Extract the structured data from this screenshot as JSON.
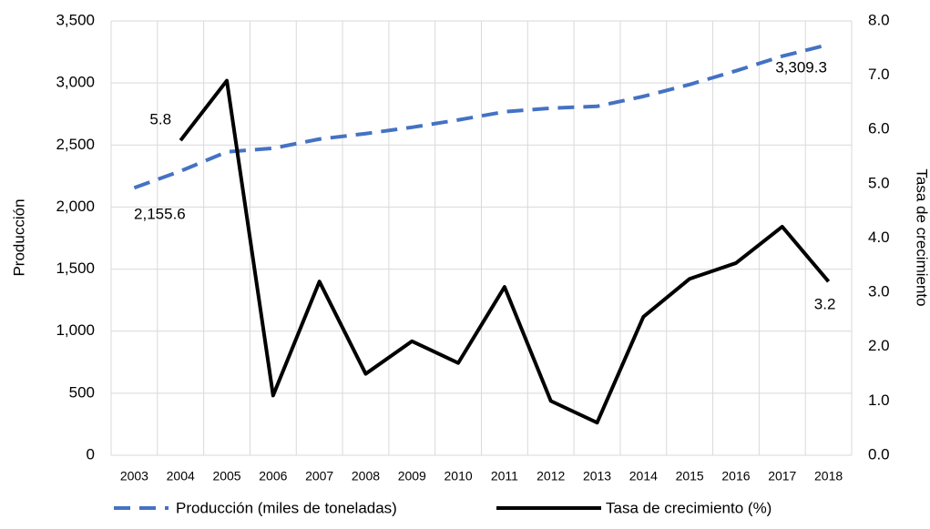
{
  "chart_data": {
    "type": "line",
    "categories": [
      "2003",
      "2004",
      "2005",
      "2006",
      "2007",
      "2008",
      "2009",
      "2010",
      "2011",
      "2012",
      "2013",
      "2014",
      "2015",
      "2016",
      "2017",
      "2018"
    ],
    "series": [
      {
        "name": "Producción (miles de toneladas)",
        "color": "#4472c4",
        "dash": true,
        "values": [
          2155.6,
          2290,
          2445,
          2474,
          2548,
          2592,
          2643,
          2702,
          2768,
          2797,
          2812,
          2892,
          2988,
          3098,
          3216,
          3309.3
        ],
        "value_labels": [
          "2,155.6",
          null,
          null,
          null,
          null,
          null,
          null,
          null,
          null,
          null,
          null,
          null,
          null,
          null,
          null,
          "3,309.3"
        ]
      },
      {
        "name": "Tasa de crecimiento (%)",
        "color": "#000000",
        "axis": "y2",
        "values": [
          null,
          5.8,
          6.9,
          1.1,
          3.2,
          1.5,
          2.1,
          1.7,
          3.1,
          1.0,
          0.6,
          2.55,
          3.25,
          3.54,
          4.21,
          3.2
        ],
        "value_labels": [
          null,
          "5.8",
          null,
          null,
          null,
          null,
          null,
          null,
          null,
          null,
          null,
          null,
          null,
          null,
          null,
          "3.2"
        ]
      }
    ],
    "ylabel": "Producción",
    "y2label": "Tasa de crecimiento",
    "ylim": [
      0,
      3500
    ],
    "yticks": [
      0,
      500,
      {
        "value": 1000,
        "label": "1,000"
      },
      {
        "value": 1500,
        "label": "1,500"
      },
      {
        "value": 2000,
        "label": "2,000"
      },
      {
        "value": 2500,
        "label": "2,500"
      },
      {
        "value": 3000,
        "label": "3,000"
      },
      {
        "value": 3500,
        "label": "3,500"
      }
    ],
    "y2lim": [
      0,
      8
    ],
    "y2ticks": [
      {
        "value": 0,
        "label": "0.0"
      },
      {
        "value": 1,
        "label": "1.0"
      },
      {
        "value": 2,
        "label": "2.0"
      },
      {
        "value": 3,
        "label": "3.0"
      },
      {
        "value": 4,
        "label": "4.0"
      },
      {
        "value": 5,
        "label": "5.0"
      },
      {
        "value": 6,
        "label": "6.0"
      },
      {
        "value": 7,
        "label": "7.0"
      },
      {
        "value": 8,
        "label": "8.0"
      }
    ],
    "grid": true,
    "legend": "bottom"
  }
}
